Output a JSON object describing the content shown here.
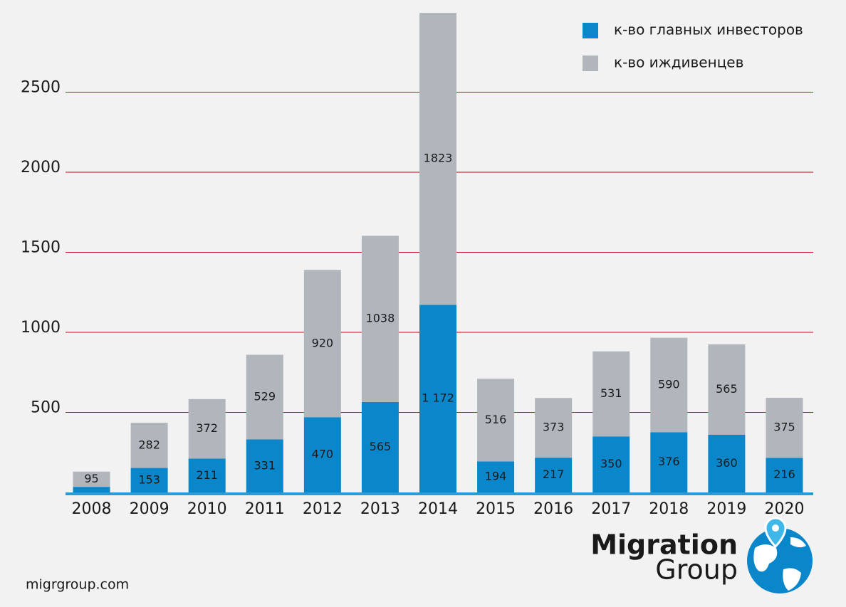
{
  "chart_data": {
    "type": "stacked-bar",
    "categories": [
      "2008",
      "2009",
      "2010",
      "2011",
      "2012",
      "2013",
      "2014",
      "2015",
      "2016",
      "2017",
      "2018",
      "2019",
      "2020"
    ],
    "series": [
      {
        "name": "к-во главных инвесторов",
        "color": "#0a86cb",
        "values": [
          35,
          153,
          211,
          331,
          470,
          565,
          1172,
          194,
          217,
          350,
          376,
          360,
          216
        ],
        "value_labels": [
          null,
          "153",
          "211",
          "331",
          "470",
          "565",
          "1 172",
          "194",
          "217",
          "350",
          "376",
          "360",
          "216"
        ]
      },
      {
        "name": "к-во иждивенцев",
        "color": "#b1b6bc",
        "values": [
          95,
          282,
          372,
          529,
          920,
          1038,
          1823,
          516,
          373,
          531,
          590,
          565,
          375
        ]
      }
    ],
    "ylim": [
      0,
      3000
    ],
    "yticks": [
      500,
      1000,
      1500,
      2000,
      2500
    ],
    "grid": true,
    "grid_color": "#d0021b",
    "legend": "top-right"
  },
  "footer": {
    "site": "migrgroup.com",
    "logo": [
      "Migration",
      "Group"
    ]
  }
}
